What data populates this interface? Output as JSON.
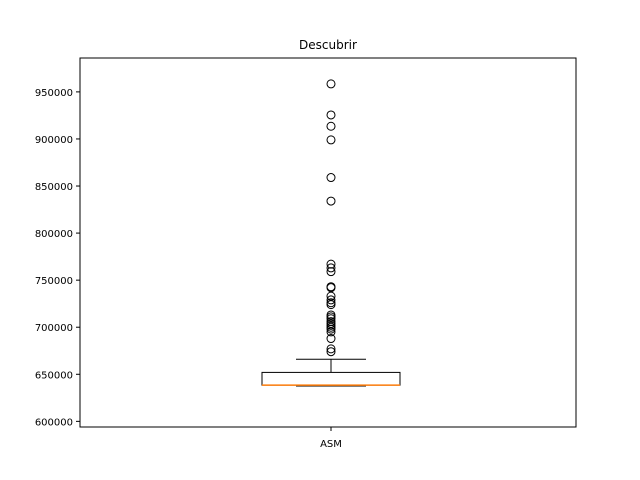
{
  "chart_data": {
    "type": "box",
    "title": "Descubrir",
    "xlabel": "",
    "ylabel": "",
    "categories": [
      "ASM"
    ],
    "ylim": [
      594000,
      986000
    ],
    "yticks": [
      600000,
      650000,
      700000,
      750000,
      800000,
      850000,
      900000,
      950000
    ],
    "ytick_labels": [
      "600000",
      "650000",
      "700000",
      "750000",
      "800000",
      "850000",
      "900000",
      "950000"
    ],
    "grid": false,
    "legend": "none",
    "box": {
      "q1": 638500,
      "median": 638500,
      "q3": 652000,
      "whisker_low": 637500,
      "whisker_high": 666000
    },
    "outliers": [
      958500,
      925500,
      913500,
      899000,
      859000,
      834000,
      767000,
      763000,
      759000,
      743000,
      742000,
      733000,
      729000,
      726000,
      724000,
      713000,
      711000,
      709000,
      706000,
      704000,
      702000,
      700000,
      698000,
      695000,
      688000,
      677000,
      674000
    ],
    "colors": {
      "box": "#000000",
      "median": "#ff7f0e",
      "outlier_edge": "#000000"
    }
  }
}
